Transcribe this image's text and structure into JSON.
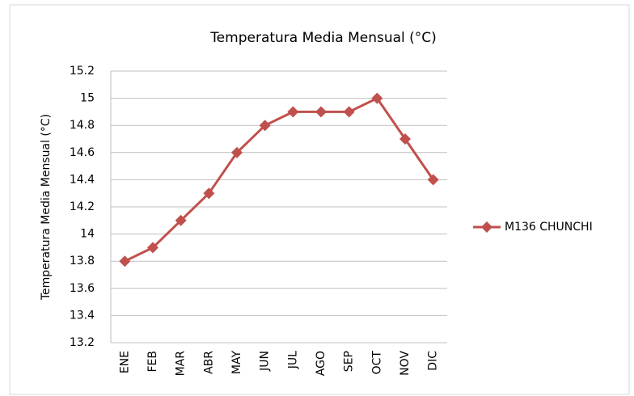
{
  "chart_data": {
    "type": "line",
    "title": "Temperatura Media Mensual (°C)",
    "y_label": "Temperatura Media Mensual (°C)",
    "categories": [
      "ENE",
      "FEB",
      "MAR",
      "ABR",
      "MAY",
      "JUN",
      "JUL",
      "AGO",
      "SEP",
      "OCT",
      "NOV",
      "DIC"
    ],
    "series": [
      {
        "name": "M136 CHUNCHI",
        "color": "#c0504d",
        "values": [
          13.8,
          13.9,
          14.1,
          14.3,
          14.6,
          14.8,
          14.9,
          14.9,
          14.9,
          15.0,
          14.7,
          14.4
        ]
      }
    ],
    "ylim": [
      13.2,
      15.2
    ],
    "yticks": [
      13.2,
      13.4,
      13.6,
      13.8,
      14,
      14.2,
      14.4,
      14.6,
      14.8,
      15,
      15.2
    ],
    "grid": true,
    "legend": "right"
  }
}
